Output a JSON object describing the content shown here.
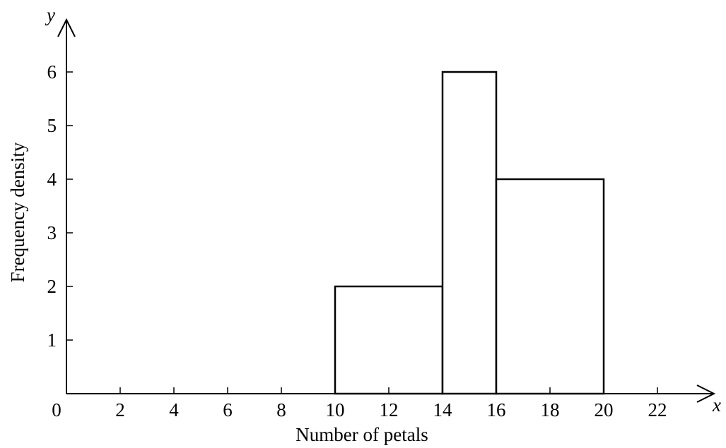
{
  "chart_data": {
    "type": "bar",
    "histogram": true,
    "bins": [
      {
        "x0": 10,
        "x1": 14,
        "value": 2
      },
      {
        "x0": 14,
        "x1": 16,
        "value": 6
      },
      {
        "x0": 16,
        "x1": 20,
        "value": 4
      }
    ],
    "title": "",
    "xlabel": "Number of petals",
    "ylabel": "Frequency density",
    "x_axis_symbol": "x",
    "y_axis_symbol": "y",
    "origin_label": "0",
    "xlim": [
      0,
      23
    ],
    "ylim": [
      0,
      6
    ],
    "x_ticks": [
      2,
      4,
      6,
      8,
      10,
      12,
      14,
      16,
      18,
      20,
      22
    ],
    "y_ticks": [
      1,
      2,
      3,
      4,
      5,
      6
    ],
    "grid": false,
    "legend": "none"
  }
}
